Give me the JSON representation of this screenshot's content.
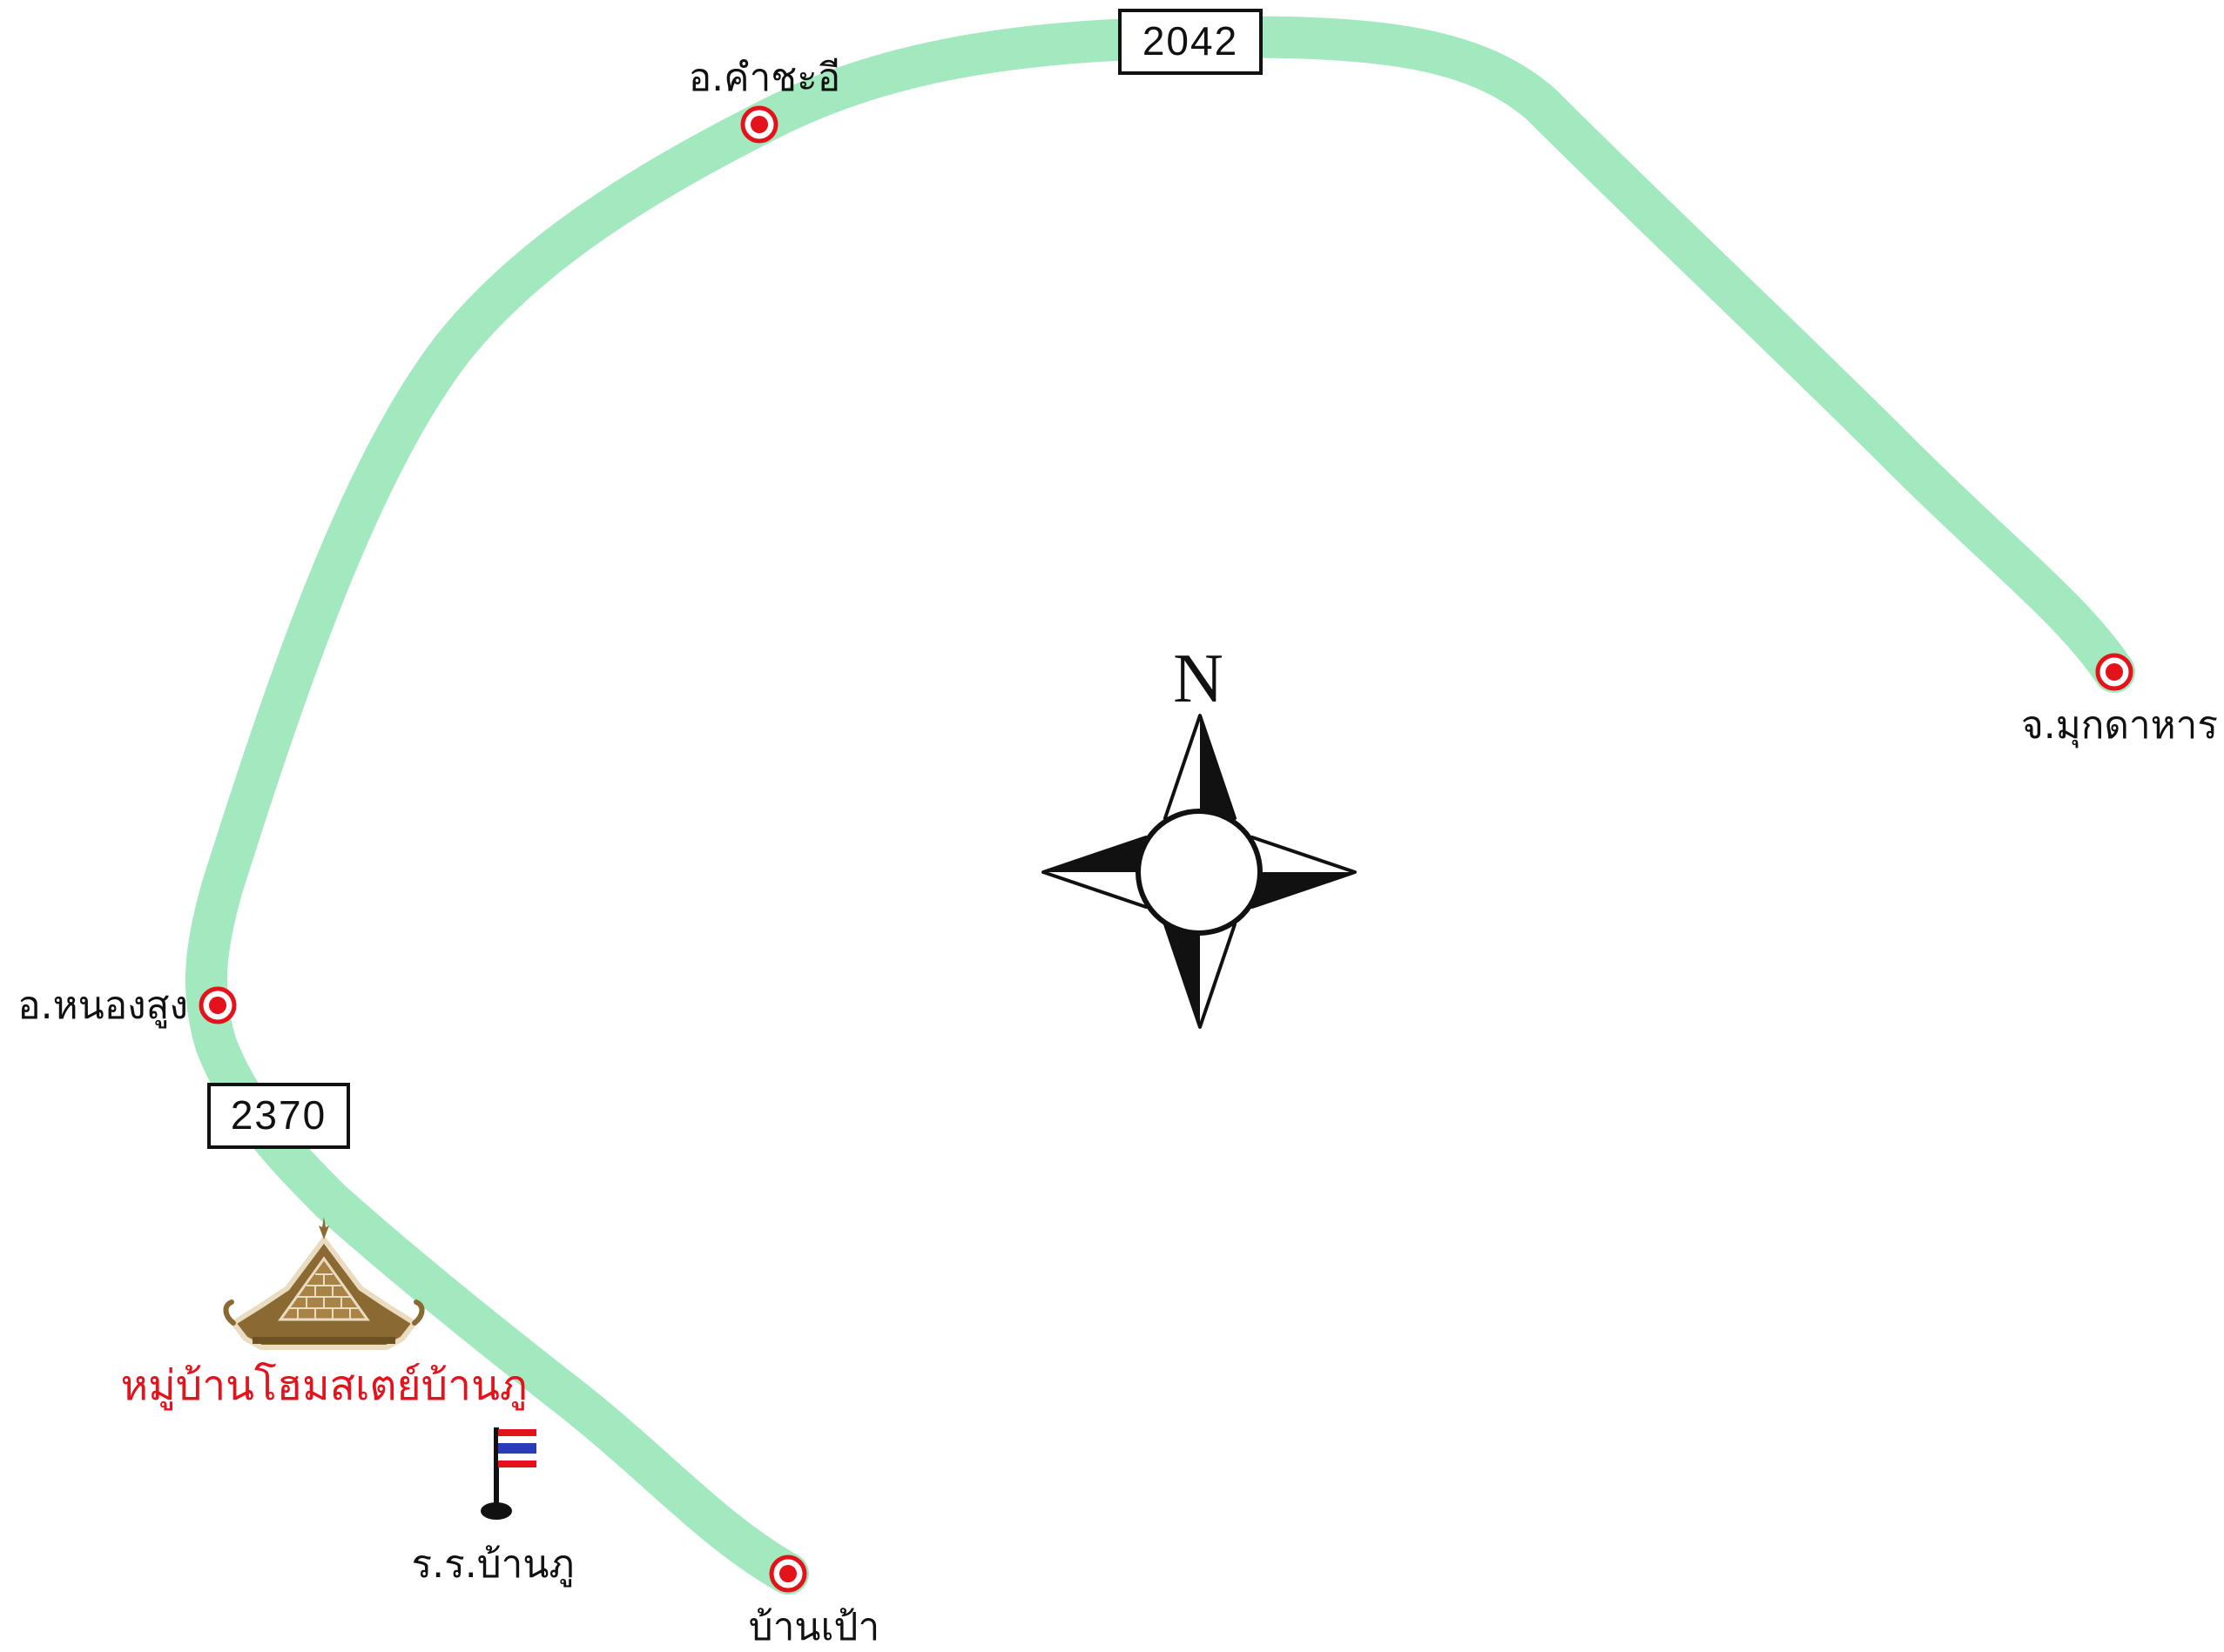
{
  "map": {
    "route_color": "#a3e9bf",
    "marker_color": "#e3121b",
    "highway_shields": [
      {
        "id": "2042",
        "text": "2042"
      },
      {
        "id": "2370",
        "text": "2370"
      }
    ],
    "places": [
      {
        "id": "khamcha-i",
        "label": "อ.คำชะอี"
      },
      {
        "id": "mukdahan",
        "label": "จ.มุกดาหาร"
      },
      {
        "id": "nong-sung",
        "label": "อ.หนองสูง"
      },
      {
        "id": "ban-pao",
        "label": "บ้านเป้า"
      }
    ],
    "destination": {
      "label": "หมู่บ้านโฮมสเตย์บ้านภู",
      "color": "#e3121b",
      "icon": "thai-temple-roof-icon"
    },
    "school": {
      "label": "ร.ร.บ้านภู",
      "icon": "thai-flag-icon"
    },
    "compass": {
      "north_label": "N",
      "icon": "compass-rose-icon"
    }
  }
}
